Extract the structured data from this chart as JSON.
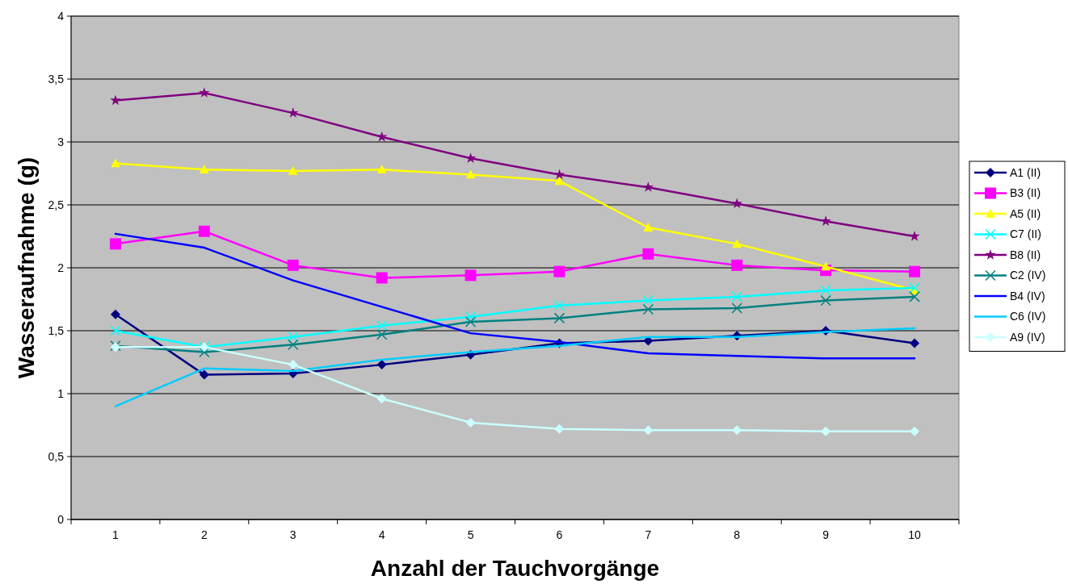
{
  "chart_data": {
    "type": "line",
    "xlabel": "Anzahl der Tauchvorgänge",
    "ylabel": "Wasseraufnahme (g)",
    "categories": [
      "1",
      "2",
      "3",
      "4",
      "5",
      "6",
      "7",
      "8",
      "9",
      "10"
    ],
    "ylim": [
      0,
      4
    ],
    "yticks": [
      0,
      {
        "value": 0.5,
        "label": "0,5"
      },
      1,
      {
        "value": 1.5,
        "label": "1,5"
      },
      2,
      {
        "value": 2.5,
        "label": "2,5"
      },
      3,
      {
        "value": 3.5,
        "label": "3,5"
      },
      4
    ],
    "grid": "y",
    "legend": "right",
    "series": [
      {
        "name": "A1 (II)",
        "color": "#000080",
        "marker": "diamond",
        "values": [
          1.63,
          1.15,
          1.16,
          1.23,
          1.31,
          1.4,
          1.42,
          1.46,
          1.5,
          1.4
        ]
      },
      {
        "name": "B3 (II)",
        "color": "#ff00ff",
        "marker": "square",
        "values": [
          2.19,
          2.29,
          2.02,
          1.92,
          1.94,
          1.97,
          2.11,
          2.02,
          1.98,
          1.97
        ]
      },
      {
        "name": "A5 (II)",
        "color": "#ffff00",
        "marker": "triangle",
        "values": [
          2.83,
          2.78,
          2.77,
          2.78,
          2.74,
          2.69,
          2.32,
          2.19,
          2.01,
          1.82
        ]
      },
      {
        "name": "C7 (II)",
        "color": "#00ffff",
        "marker": "cross",
        "values": [
          1.5,
          1.37,
          1.45,
          1.54,
          1.61,
          1.7,
          1.74,
          1.77,
          1.82,
          1.84
        ]
      },
      {
        "name": "B8 (II)",
        "color": "#800080",
        "marker": "star",
        "values": [
          3.33,
          3.39,
          3.23,
          3.04,
          2.87,
          2.74,
          2.64,
          2.51,
          2.37,
          2.25
        ]
      },
      {
        "name": "C2 (IV)",
        "color": "#008080",
        "marker": "cross",
        "values": [
          1.38,
          1.33,
          1.39,
          1.47,
          1.57,
          1.6,
          1.67,
          1.68,
          1.74,
          1.77
        ]
      },
      {
        "name": "B4 (IV)",
        "color": "#0000ff",
        "marker": "none",
        "values": [
          2.27,
          2.16,
          1.9,
          1.69,
          1.48,
          1.41,
          1.32,
          1.3,
          1.28,
          1.28
        ]
      },
      {
        "name": "C6 (IV)",
        "color": "#00ccff",
        "marker": "none",
        "values": [
          0.9,
          1.2,
          1.18,
          1.27,
          1.33,
          1.38,
          1.45,
          1.45,
          1.49,
          1.52
        ]
      },
      {
        "name": "A9 (IV)",
        "color": "#ccffff",
        "marker": "diamond",
        "values": [
          1.37,
          1.37,
          1.23,
          0.96,
          0.77,
          0.72,
          0.71,
          0.71,
          0.7,
          0.7
        ]
      }
    ]
  }
}
